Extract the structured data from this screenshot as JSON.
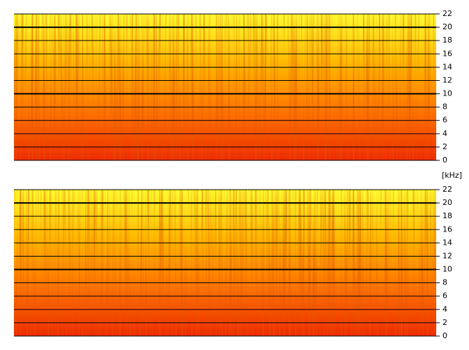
{
  "chart_data": [
    {
      "type": "spectrogram",
      "y_label": "[kHz]",
      "ylim": [
        0,
        22
      ],
      "yticks": [
        0,
        2,
        4,
        6,
        8,
        10,
        12,
        14,
        16,
        18,
        20,
        22
      ],
      "major_ticks": [
        10,
        20
      ],
      "grid": true,
      "colormap": [
        "#ee2a00",
        "#ff7400",
        "#ffb800",
        "#ffff30"
      ]
    },
    {
      "type": "spectrogram",
      "ylim": [
        0,
        22
      ],
      "yticks": [
        0,
        2,
        4,
        6,
        8,
        10,
        12,
        14,
        16,
        18,
        20,
        22
      ],
      "major_ticks": [
        10,
        20
      ],
      "grid": true,
      "colormap": [
        "#ee2a00",
        "#ff7400",
        "#ffb800",
        "#ffff30"
      ]
    }
  ]
}
